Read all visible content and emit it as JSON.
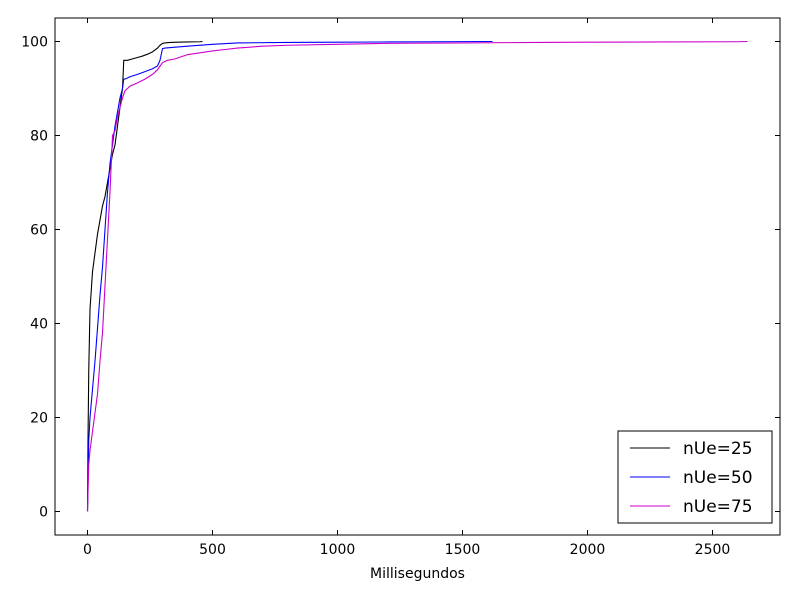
{
  "chart_data": {
    "type": "line",
    "title": "",
    "xlabel": "Millisegundos",
    "ylabel": "",
    "xlim": [
      -130,
      2770
    ],
    "ylim": [
      -5,
      105
    ],
    "xticks": [
      0,
      500,
      1000,
      1500,
      2000,
      2500
    ],
    "yticks": [
      0,
      20,
      40,
      60,
      80,
      100
    ],
    "grid": false,
    "legend_position": "bottom-right",
    "series": [
      {
        "name": "nUe=25",
        "color": "#000000",
        "x": [
          0,
          2,
          5,
          10,
          20,
          30,
          40,
          50,
          60,
          70,
          80,
          90,
          100,
          110,
          120,
          130,
          140,
          145,
          150,
          160,
          180,
          200,
          220,
          240,
          260,
          280,
          290,
          300,
          310,
          330,
          360,
          400,
          450,
          460
        ],
        "y": [
          0,
          15,
          30,
          43,
          51,
          55,
          59,
          62,
          65,
          67,
          70,
          73,
          76,
          78,
          82,
          86,
          90,
          96,
          96,
          96,
          96.3,
          96.6,
          96.9,
          97.3,
          97.8,
          98.6,
          99.2,
          99.6,
          99.7,
          99.8,
          99.85,
          99.9,
          99.95,
          100
        ]
      },
      {
        "name": "nUe=50",
        "color": "#0000ff",
        "x": [
          0,
          5,
          10,
          20,
          30,
          40,
          50,
          60,
          70,
          80,
          90,
          100,
          110,
          120,
          130,
          140,
          145,
          150,
          170,
          200,
          230,
          260,
          280,
          290,
          300,
          310,
          350,
          400,
          500,
          600,
          800,
          1000,
          1200,
          1400,
          1600,
          1620
        ],
        "y": [
          0,
          15,
          20,
          26,
          32,
          39,
          46,
          52,
          60,
          68,
          74,
          78,
          82,
          85,
          88,
          90,
          92,
          92,
          92.5,
          93,
          93.6,
          94.2,
          94.8,
          96,
          98.5,
          98.6,
          98.8,
          99,
          99.4,
          99.7,
          99.8,
          99.85,
          99.9,
          99.95,
          100,
          100
        ]
      },
      {
        "name": "nUe=75",
        "color": "#cc00cc",
        "x": [
          0,
          5,
          10,
          20,
          30,
          40,
          50,
          60,
          70,
          80,
          90,
          100,
          110,
          120,
          130,
          140,
          150,
          170,
          200,
          230,
          260,
          280,
          300,
          320,
          350,
          400,
          450,
          500,
          550,
          600,
          700,
          800,
          1000,
          1200,
          1500,
          1800,
          2000,
          2300,
          2600,
          2640
        ],
        "y": [
          0,
          10,
          13,
          17,
          21,
          25,
          32,
          38,
          48,
          58,
          68,
          80,
          81,
          84,
          86,
          88,
          89.5,
          90.5,
          91.2,
          92,
          93,
          94,
          95.5,
          96,
          96.3,
          97.2,
          97.6,
          98,
          98.3,
          98.6,
          99,
          99.2,
          99.4,
          99.6,
          99.7,
          99.8,
          99.85,
          99.9,
          99.95,
          100
        ]
      }
    ]
  }
}
